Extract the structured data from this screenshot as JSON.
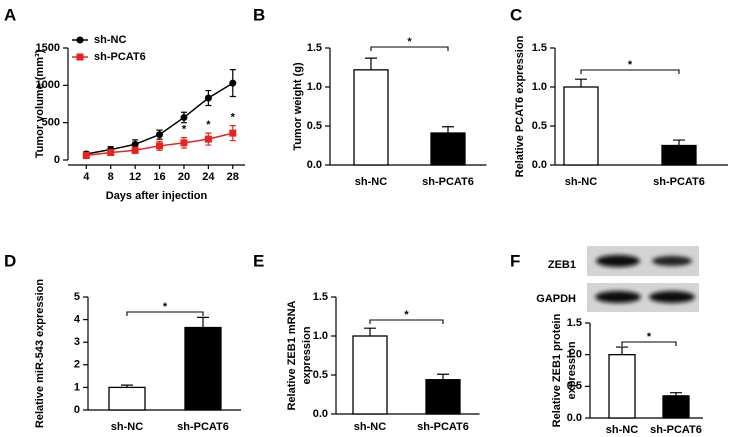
{
  "chart_data": [
    {
      "type": "line",
      "panel": "A",
      "ylabel": "Tumor volume (mm³)",
      "xlabel": "Days after injection",
      "x": [
        4,
        8,
        12,
        16,
        20,
        24,
        28
      ],
      "xlim": [
        1,
        30
      ],
      "xticks": [
        4,
        8,
        12,
        16,
        20,
        24,
        28
      ],
      "ylim": [
        0,
        1500
      ],
      "yticks": [
        0,
        500,
        1000,
        1500
      ],
      "legend": "upper left",
      "series": [
        {
          "name": "sh-NC",
          "color": "#000000",
          "marker": "circle",
          "values": [
            80,
            140,
            210,
            340,
            570,
            830,
            1030
          ],
          "errors": [
            30,
            40,
            60,
            60,
            70,
            100,
            180
          ],
          "significance": [
            null,
            null,
            null,
            null,
            null,
            null,
            null
          ]
        },
        {
          "name": "sh-PCAT6",
          "color": "#e8231f",
          "marker": "square",
          "values": [
            60,
            100,
            130,
            190,
            230,
            280,
            360
          ],
          "errors": [
            20,
            30,
            40,
            60,
            70,
            80,
            100
          ],
          "significance": [
            null,
            null,
            null,
            null,
            "*",
            "*",
            "*"
          ]
        }
      ]
    },
    {
      "type": "bar",
      "panel": "B",
      "ylabel": [
        "Tumor weight (g)"
      ],
      "categories": [
        "sh-NC",
        "sh-PCAT6"
      ],
      "values": [
        1.22,
        0.41
      ],
      "errors": [
        0.15,
        0.08
      ],
      "fills": [
        "#ffffff",
        "#000000"
      ],
      "significance": "*",
      "ylim": [
        0,
        1.5
      ],
      "yticks": [
        {
          "value": 0,
          "label": "0.0"
        },
        0.5,
        {
          "value": 1,
          "label": "1.0"
        },
        1.5
      ]
    },
    {
      "type": "bar",
      "panel": "C",
      "ylabel": [
        "Relative PCAT6 expression"
      ],
      "categories": [
        "sh-NC",
        "sh-PCAT6"
      ],
      "values": [
        1.0,
        0.25
      ],
      "errors": [
        0.1,
        0.07
      ],
      "fills": [
        "#ffffff",
        "#000000"
      ],
      "significance": "*",
      "ylim": [
        0,
        1.5
      ],
      "yticks": [
        {
          "value": 0,
          "label": "0.0"
        },
        0.5,
        {
          "value": 1,
          "label": "1.0"
        },
        1.5
      ]
    },
    {
      "type": "bar",
      "panel": "D",
      "ylabel": [
        "Relative miR-543 expression"
      ],
      "categories": [
        "sh-NC",
        "sh-PCAT6"
      ],
      "values": [
        1.0,
        3.65
      ],
      "errors": [
        0.1,
        0.45
      ],
      "fills": [
        "#ffffff",
        "#000000"
      ],
      "significance": "*",
      "ylim": [
        0,
        5
      ],
      "yticks": [
        0,
        1,
        2,
        3,
        4,
        5
      ]
    },
    {
      "type": "bar",
      "panel": "E",
      "ylabel": [
        "Relative ZEB1 mRNA",
        "expression"
      ],
      "categories": [
        "sh-NC",
        "sh-PCAT6"
      ],
      "values": [
        1.0,
        0.44
      ],
      "errors": [
        0.1,
        0.07
      ],
      "fills": [
        "#ffffff",
        "#000000"
      ],
      "significance": "*",
      "ylim": [
        0,
        1.5
      ],
      "yticks": [
        {
          "value": 0,
          "label": "0.0"
        },
        0.5,
        {
          "value": 1,
          "label": "1.0"
        },
        1.5
      ]
    },
    {
      "type": "bar",
      "panel": "F",
      "ylabel": [
        "Relative ZEB1 protein",
        "expression"
      ],
      "categories": [
        "sh-NC",
        "sh-PCAT6"
      ],
      "values": [
        1.0,
        0.35
      ],
      "errors": [
        0.12,
        0.05
      ],
      "fills": [
        "#ffffff",
        "#000000"
      ],
      "significance": "*",
      "ylim": [
        0,
        1.5
      ],
      "yticks": [
        {
          "value": 0,
          "label": "0.0"
        },
        0.5,
        {
          "value": 1,
          "label": "1.0"
        },
        1.5
      ],
      "blot_labels": [
        "ZEB1",
        "GAPDH"
      ]
    }
  ]
}
